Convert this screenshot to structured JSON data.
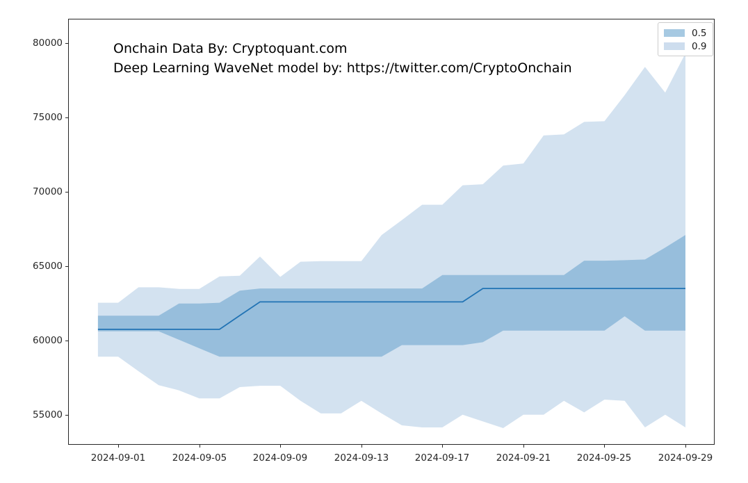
{
  "annotation": {
    "line1": "Onchain Data By: Cryptoquant.com",
    "line2": "Deep Learning WaveNet model by: https://twitter.com/CryptoOnchain"
  },
  "legend": {
    "position": "top-right",
    "items": [
      {
        "label": "0.5",
        "color": "#a6c9e2"
      },
      {
        "label": "0.9",
        "color": "#cdddee"
      }
    ]
  },
  "chart_data": {
    "type": "area",
    "title": "",
    "xlabel": "",
    "ylabel": "",
    "grid": false,
    "x": [
      "2024-08-31",
      "2024-09-01",
      "2024-09-02",
      "2024-09-03",
      "2024-09-04",
      "2024-09-05",
      "2024-09-06",
      "2024-09-07",
      "2024-09-08",
      "2024-09-09",
      "2024-09-10",
      "2024-09-11",
      "2024-09-12",
      "2024-09-13",
      "2024-09-14",
      "2024-09-15",
      "2024-09-16",
      "2024-09-17",
      "2024-09-18",
      "2024-09-19",
      "2024-09-20",
      "2024-09-21",
      "2024-09-22",
      "2024-09-23",
      "2024-09-24",
      "2024-09-25",
      "2024-09-26",
      "2024-09-27",
      "2024-09-28",
      "2024-09-29"
    ],
    "series": [
      {
        "name": "median_0.5",
        "role": "line",
        "values": [
          60750,
          60750,
          60750,
          60750,
          60750,
          60750,
          60750,
          61680,
          62600,
          62600,
          62600,
          62600,
          62600,
          62600,
          62600,
          62600,
          62600,
          62600,
          62600,
          63500,
          63500,
          63500,
          63500,
          63500,
          63500,
          63500,
          63500,
          63500,
          63500,
          63500
        ]
      },
      {
        "name": "band50_upper",
        "role": "band-0.5-upper",
        "values": [
          61670,
          61670,
          61670,
          61670,
          62490,
          62490,
          62540,
          63350,
          63500,
          63500,
          63500,
          63500,
          63500,
          63500,
          63500,
          63500,
          63500,
          64400,
          64400,
          64400,
          64400,
          64400,
          64400,
          64400,
          65370,
          65370,
          65400,
          65450,
          66250,
          67100
        ]
      },
      {
        "name": "band50_lower",
        "role": "band-0.5-lower",
        "values": [
          60620,
          60620,
          60620,
          60620,
          60050,
          59480,
          58910,
          58910,
          58910,
          58910,
          58910,
          58910,
          58910,
          58910,
          58910,
          59690,
          59690,
          59690,
          59690,
          59890,
          60670,
          60670,
          60670,
          60670,
          60670,
          60670,
          61630,
          60670,
          60670,
          60670
        ]
      },
      {
        "name": "band90_upper",
        "role": "band-0.9-upper",
        "values": [
          62540,
          62540,
          63580,
          63580,
          63470,
          63470,
          64310,
          64360,
          65650,
          64280,
          65300,
          65340,
          65340,
          65340,
          67090,
          68100,
          69130,
          69130,
          70440,
          70510,
          71760,
          71900,
          73790,
          73860,
          74700,
          74750,
          76500,
          78400,
          76670,
          79310
        ]
      },
      {
        "name": "band90_lower",
        "role": "band-0.9-lower",
        "values": [
          58910,
          58910,
          57940,
          57000,
          56650,
          56110,
          56110,
          56870,
          56960,
          56960,
          55950,
          55100,
          55100,
          55950,
          55100,
          54300,
          54160,
          54160,
          55010,
          54560,
          54110,
          55010,
          55010,
          55950,
          55170,
          56030,
          55950,
          54160,
          55010,
          54160
        ]
      }
    ],
    "x_tick_labels": [
      "2024-09-01",
      "2024-09-05",
      "2024-09-09",
      "2024-09-13",
      "2024-09-17",
      "2024-09-21",
      "2024-09-25",
      "2024-09-29"
    ],
    "y_ticks": [
      55000,
      60000,
      65000,
      70000,
      75000,
      80000
    ],
    "y_tick_labels": [
      "55000",
      "60000",
      "65000",
      "70000",
      "75000",
      "80000"
    ],
    "ylim": [
      53000,
      81640
    ],
    "legend_position": "upper right",
    "colors": {
      "band_0.5": "#97bedc",
      "band_0.9": "#d3e2f0",
      "median_line": "#2173b4",
      "spine": "#262626",
      "tick_text": "#262626",
      "annotation_text": "#000000",
      "background": "#ffffff"
    }
  }
}
